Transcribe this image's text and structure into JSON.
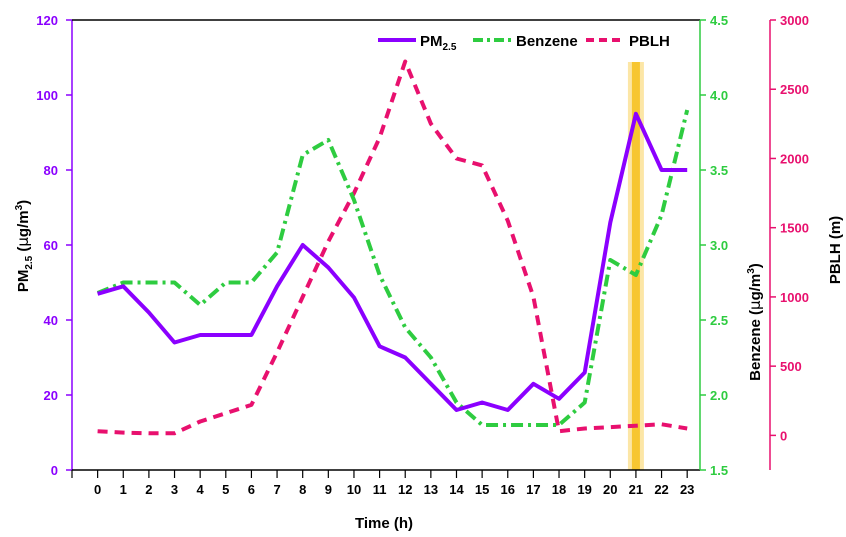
{
  "chart_data": {
    "type": "line",
    "x_axis": {
      "label": "Time (h)",
      "range": [
        -1,
        23.5
      ],
      "ticks": [
        0,
        1,
        2,
        3,
        4,
        5,
        6,
        7,
        8,
        9,
        10,
        11,
        12,
        13,
        14,
        15,
        16,
        17,
        18,
        19,
        20,
        21,
        22,
        23
      ]
    },
    "y_axes": {
      "left": {
        "label_main": "PM",
        "label_sub": "2.5",
        "label_unit_open": " (",
        "label_mu": "μ",
        "label_unit_mid": "g/m",
        "label_sup": "3",
        "label_unit_close": ")",
        "range": [
          0,
          120
        ],
        "ticks": [
          0,
          20,
          40,
          60,
          80,
          100,
          120
        ],
        "color": "#8b00ff"
      },
      "right1": {
        "label_main": "Benzene (",
        "label_mu": "μ",
        "label_unit_mid": "g/m",
        "label_sup": "3",
        "label_unit_close": ")",
        "range": [
          1.5,
          4.5
        ],
        "ticks": [
          1.5,
          2.0,
          2.5,
          3.0,
          3.5,
          4.0,
          4.5
        ],
        "tick_labels": [
          "1.5",
          "2.0",
          "2.5",
          "3.0",
          "3.5",
          "4.0",
          "4.5"
        ],
        "color": "#2ecc40"
      },
      "right2": {
        "label": "PBLH (m)",
        "range": [
          -250,
          3000
        ],
        "ticks": [
          0,
          500,
          1000,
          1500,
          2000,
          2500,
          3000
        ],
        "color": "#e8106e"
      }
    },
    "series": [
      {
        "name_main": "PM",
        "name_sub": "2.5",
        "axis": "left",
        "color": "#8b00ff",
        "style": "solid",
        "x": [
          0,
          1,
          2,
          3,
          4,
          5,
          6,
          7,
          8,
          9,
          10,
          11,
          12,
          13,
          14,
          15,
          16,
          17,
          18,
          19,
          20,
          21,
          22,
          23
        ],
        "values": [
          47,
          49,
          42,
          34,
          36,
          36,
          36,
          49,
          60,
          54,
          46,
          33,
          30,
          23,
          16,
          18,
          16,
          23,
          19,
          26,
          66,
          95,
          80,
          80
        ]
      },
      {
        "name": "Benzene",
        "axis": "right1",
        "color": "#2ecc40",
        "style": "dashdot",
        "x": [
          0,
          1,
          2,
          3,
          4,
          5,
          6,
          7,
          8,
          9,
          10,
          11,
          12,
          13,
          14,
          15,
          16,
          17,
          18,
          19,
          20,
          21,
          22,
          23
        ],
        "values": [
          2.68,
          2.75,
          2.75,
          2.75,
          2.6,
          2.75,
          2.75,
          2.95,
          3.6,
          3.7,
          3.3,
          2.8,
          2.45,
          2.25,
          1.95,
          1.8,
          1.8,
          1.8,
          1.8,
          1.95,
          2.9,
          2.8,
          3.2,
          3.9
        ]
      },
      {
        "name": "PBLH",
        "axis": "right2",
        "color": "#e8106e",
        "style": "dashed",
        "x": [
          0,
          1,
          2,
          3,
          4,
          5,
          6,
          7,
          8,
          9,
          10,
          11,
          12,
          13,
          14,
          15,
          16,
          17,
          18,
          19,
          20,
          21,
          22,
          23
        ],
        "values": [
          30,
          20,
          15,
          15,
          100,
          160,
          220,
          600,
          1000,
          1400,
          1750,
          2150,
          2700,
          2250,
          2000,
          1950,
          1550,
          1000,
          30,
          50,
          60,
          70,
          80,
          50
        ]
      }
    ],
    "highlight": {
      "x": 21,
      "color": "#f5b800"
    },
    "legend_position": "top-right"
  }
}
